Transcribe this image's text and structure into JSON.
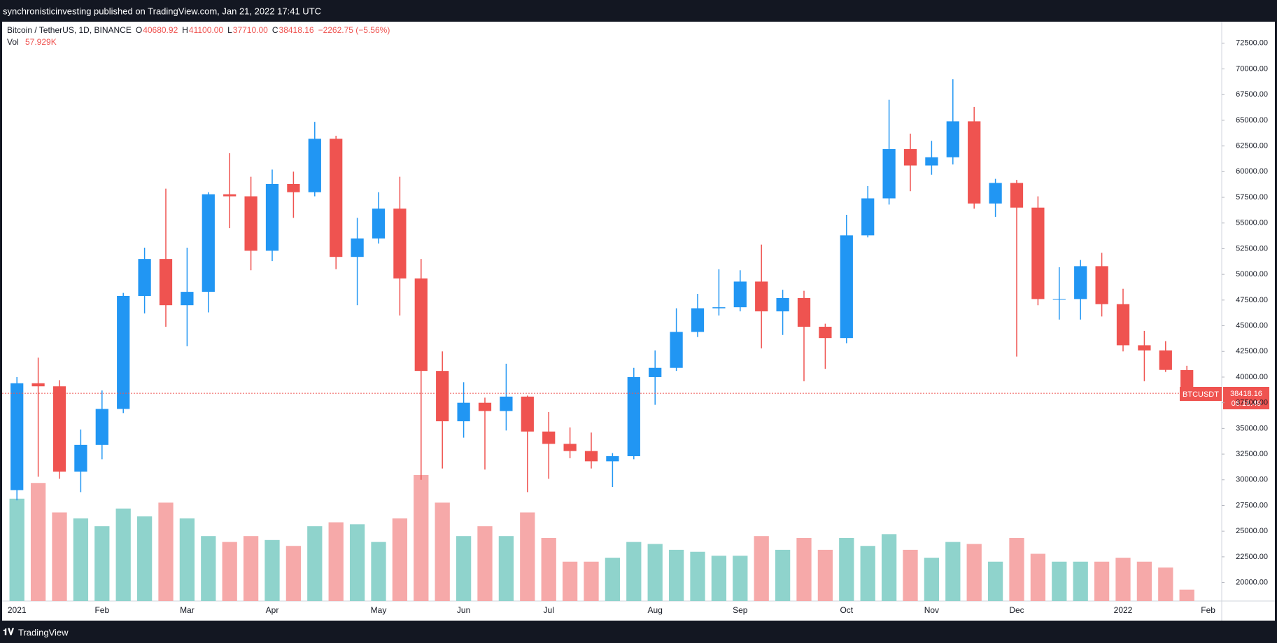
{
  "header": {
    "published": "synchronisticinvesting published on TradingView.com, Jan 21, 2022 17:41 UTC"
  },
  "footer": {
    "brand": "TradingView"
  },
  "legend": {
    "symbol": "Bitcoin / TetherUS, 1D, BINANCE",
    "o": "O",
    "open": "40680.92",
    "h": "H",
    "high": "41100.00",
    "l": "L",
    "low": "37710.00",
    "c": "C",
    "close": "38418.16",
    "change": "−2262.75 (−5.56%)",
    "vol": "Vol",
    "volume": "57.929K"
  },
  "price_tag": {
    "symbol": "BTCUSDT",
    "price": "38418.16",
    "countdown": "06:18:49"
  },
  "chart_data": {
    "type": "candlestick",
    "categories": [
      "2021",
      null,
      null,
      null,
      "Feb",
      null,
      null,
      null,
      "Mar",
      null,
      null,
      null,
      "Apr",
      null,
      null,
      null,
      null,
      "May",
      null,
      null,
      null,
      "Jun",
      null,
      null,
      null,
      "Jul",
      null,
      null,
      null,
      null,
      "Aug",
      null,
      null,
      null,
      "Sep",
      null,
      null,
      null,
      null,
      "Oct",
      null,
      null,
      null,
      "Nov",
      null,
      null,
      null,
      "Dec",
      null,
      null,
      null,
      null,
      "2022",
      null,
      null,
      null,
      "Feb"
    ],
    "open": [
      29000,
      39400,
      39100,
      30800,
      33400,
      36900,
      47900,
      51500,
      47000,
      48300,
      57800,
      57600,
      52300,
      58800,
      58000,
      63200,
      51700,
      53500,
      56400,
      49600,
      40600,
      35700,
      37500,
      36700,
      38100,
      34700,
      33500,
      32800,
      31800,
      32300,
      40000,
      40900,
      44400,
      46700,
      46800,
      49300,
      46400,
      47700,
      44900,
      43800,
      53800,
      57400,
      62200,
      60600,
      61400,
      64900,
      56900,
      58900,
      56500,
      47600,
      47600,
      50800,
      47100,
      43100,
      42600,
      40680.92,
      null
    ],
    "high": [
      40000,
      41900,
      39700,
      34900,
      38700,
      48200,
      52600,
      58350,
      52600,
      58000,
      61800,
      59500,
      60200,
      60000,
      64850,
      63500,
      55500,
      58000,
      59500,
      51500,
      42500,
      39500,
      38000,
      41300,
      38200,
      36600,
      35100,
      34600,
      32600,
      40900,
      42600,
      46700,
      48100,
      50500,
      50400,
      52900,
      48500,
      48400,
      45200,
      55800,
      58600,
      67000,
      63700,
      63000,
      69000,
      66300,
      59300,
      59200,
      57600,
      50700,
      51400,
      52100,
      48600,
      44500,
      43500,
      41100,
      null
    ],
    "low": [
      28000,
      30300,
      30100,
      28800,
      32000,
      36500,
      46200,
      44900,
      43000,
      46300,
      54500,
      50400,
      51300,
      55500,
      57600,
      50500,
      47000,
      53000,
      46000,
      30000,
      31100,
      34100,
      31000,
      34800,
      28800,
      30100,
      32100,
      31100,
      29300,
      32000,
      37300,
      40600,
      43900,
      46000,
      46400,
      42800,
      44100,
      39600,
      40800,
      43300,
      53600,
      56800,
      58100,
      59700,
      60700,
      56400,
      55600,
      42000,
      47000,
      45600,
      45600,
      45900,
      42500,
      39600,
      40500,
      37710,
      null
    ],
    "close": [
      39400,
      39100,
      30800,
      33400,
      36900,
      47900,
      51500,
      47000,
      48300,
      57800,
      57600,
      52300,
      58800,
      58000,
      63200,
      51700,
      53500,
      56400,
      49600,
      40600,
      35700,
      37500,
      36700,
      38100,
      34700,
      33500,
      32800,
      31800,
      32300,
      40000,
      40900,
      44400,
      46700,
      46800,
      49300,
      46400,
      47700,
      44900,
      43800,
      53800,
      57400,
      62200,
      60600,
      61400,
      64900,
      56900,
      58900,
      56500,
      47600,
      47600,
      50800,
      47100,
      43100,
      42600,
      40700,
      38418.16,
      null
    ],
    "volume": [
      520,
      600,
      450,
      420,
      380,
      470,
      430,
      500,
      420,
      330,
      300,
      330,
      310,
      280,
      380,
      400,
      390,
      300,
      420,
      640,
      500,
      330,
      380,
      330,
      450,
      320,
      200,
      200,
      220,
      300,
      290,
      260,
      250,
      230,
      230,
      330,
      260,
      320,
      260,
      320,
      280,
      340,
      260,
      220,
      300,
      290,
      200,
      320,
      240,
      200,
      200,
      200,
      220,
      200,
      170,
      57.929,
      null
    ],
    "ylim": [
      18200,
      74600
    ],
    "yticks": [
      {
        "value": 20000,
        "label": "20000.00"
      },
      {
        "value": 22500,
        "label": "22500.00"
      },
      {
        "value": 25000,
        "label": "25000.00"
      },
      {
        "value": 27500,
        "label": "27500.00"
      },
      {
        "value": 30000,
        "label": "30000.00"
      },
      {
        "value": 32500,
        "label": "32500.00"
      },
      {
        "value": 35000,
        "label": "35000.00"
      },
      {
        "value": 37500,
        "label": "37500.00"
      },
      {
        "value": 40000,
        "label": "40000.00"
      },
      {
        "value": 42500,
        "label": "42500.00"
      },
      {
        "value": 45000,
        "label": "45000.00"
      },
      {
        "value": 47500,
        "label": "47500.00"
      },
      {
        "value": 50000,
        "label": "50000.00"
      },
      {
        "value": 52500,
        "label": "52500.00"
      },
      {
        "value": 55000,
        "label": "55000.00"
      },
      {
        "value": 57500,
        "label": "57500.00"
      },
      {
        "value": 60000,
        "label": "60000.00"
      },
      {
        "value": 62500,
        "label": "62500.00"
      },
      {
        "value": 65000,
        "label": "65000.00"
      },
      {
        "value": 67500,
        "label": "67500.00"
      },
      {
        "value": 70000,
        "label": "70000.00"
      },
      {
        "value": 72500,
        "label": "72500.00"
      }
    ],
    "grid": false,
    "up_color": "#2196f3",
    "down_color": "#ef5350",
    "volume_up_color": "#8fd3cc",
    "volume_down_color": "#f6a9a9"
  }
}
